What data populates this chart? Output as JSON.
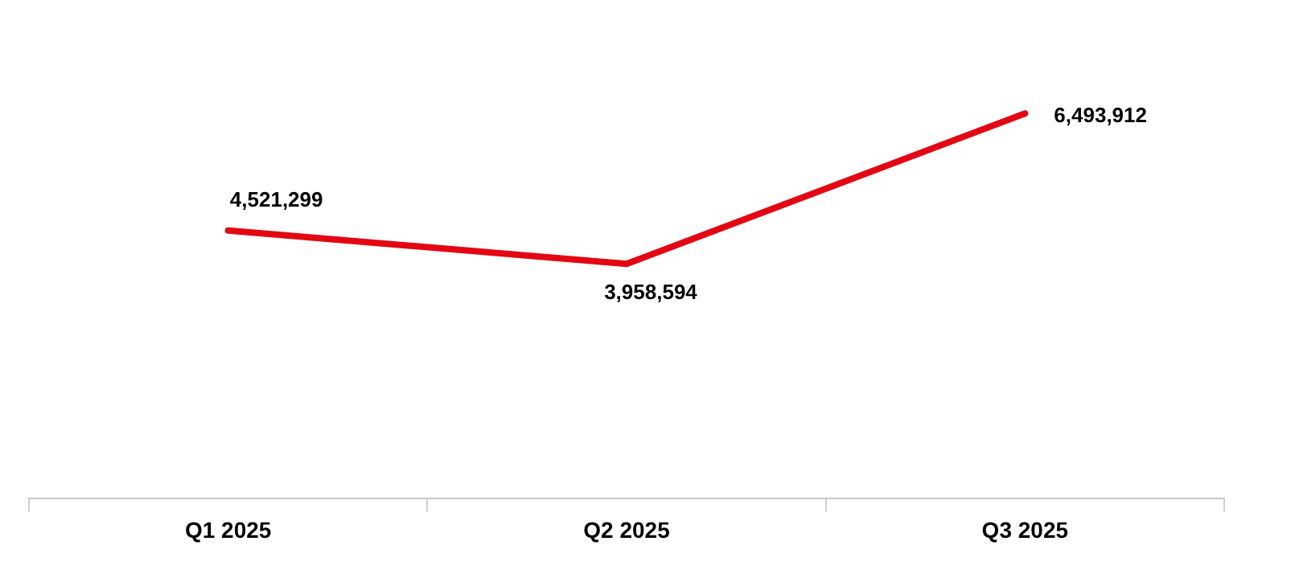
{
  "chart_data": {
    "type": "line",
    "categories": [
      "Q1 2025",
      "Q2 2025",
      "Q3 2025"
    ],
    "series": [
      {
        "color": "#e30613",
        "values": [
          4521299,
          3958594,
          6493912
        ],
        "value_labels": [
          "4,521,299",
          "3,958,594",
          "6,493,912"
        ]
      }
    ],
    "marker": "none",
    "grid": false,
    "legend": false,
    "tick_labels": "x"
  }
}
